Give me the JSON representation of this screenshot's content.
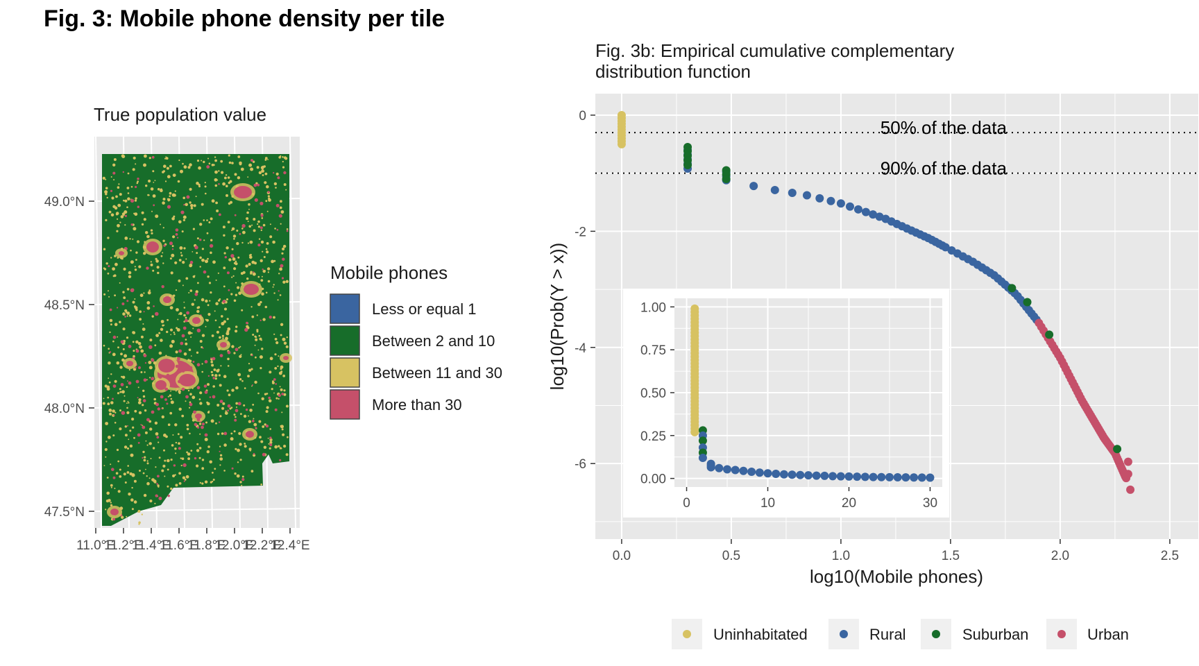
{
  "figure": {
    "title": "Fig. 3: Mobile phone density per tile"
  },
  "colors": {
    "blue": "#3a65a0",
    "green": "#176d2a",
    "yellow": "#d7c262",
    "red": "#c5506a",
    "panel": "#e8e8e8",
    "grid": "#ffffff"
  },
  "chart_data": [
    {
      "type": "map",
      "title": "True population value",
      "y_ticks": [
        "47.5°N",
        "48.0°N",
        "48.5°N",
        "49.0°N"
      ],
      "x_ticks": [
        "11.0°E",
        "11.2°E",
        "11.4°E",
        "11.6°E",
        "11.8°E",
        "12.0°E",
        "12.2°E",
        "12.4°E"
      ],
      "legend": {
        "title": "Mobile phones",
        "entries": [
          {
            "label": "Less or equal 1",
            "color": "#3a65a0"
          },
          {
            "label": "Between 2 and 10",
            "color": "#176d2a"
          },
          {
            "label": "Between 11 and 30",
            "color": "#d7c262"
          },
          {
            "label": "More than 30",
            "color": "#c5506a"
          }
        ]
      }
    },
    {
      "type": "scatter",
      "title": "Fig. 3b: Empirical cumulative complementary distribution function",
      "title_lines": [
        "Fig. 3b: Empirical cumulative complementary",
        "distribution function"
      ],
      "xlabel": "log10(Mobile phones)",
      "ylabel": "log10(Prob(Y > x))",
      "xlim": [
        -0.12,
        2.63
      ],
      "ylim": [
        -7.3,
        0.37
      ],
      "x_ticks": [
        0.0,
        0.5,
        1.0,
        1.5,
        2.0,
        2.5
      ],
      "x_tick_labels": [
        "0.0",
        "0.5",
        "1.0",
        "1.5",
        "2.0",
        "2.5"
      ],
      "y_ticks": [
        0,
        -2,
        -4,
        -6
      ],
      "y_tick_labels": [
        "0",
        "-2",
        "-4",
        "-6"
      ],
      "hlines": [
        {
          "y": -0.301,
          "label": "50% of the data"
        },
        {
          "y": -1.0,
          "label": "90% of the data"
        }
      ],
      "legend": {
        "placement": "bottom",
        "entries": [
          {
            "label": "Uninhabitated",
            "color": "#d7c262"
          },
          {
            "label": "Rural",
            "color": "#3a65a0"
          },
          {
            "label": "Suburban",
            "color": "#176d2a"
          },
          {
            "label": "Urban",
            "color": "#c5506a"
          }
        ]
      },
      "curve_knots": [
        [
          0.0,
          0.0
        ],
        [
          0.301,
          -0.75
        ],
        [
          0.477,
          -1.07
        ],
        [
          0.602,
          -1.22
        ],
        [
          0.699,
          -1.29
        ],
        [
          0.845,
          -1.38
        ],
        [
          1.0,
          -1.52
        ],
        [
          1.2,
          -1.78
        ],
        [
          1.4,
          -2.12
        ],
        [
          1.6,
          -2.52
        ],
        [
          1.7,
          -2.76
        ],
        [
          1.8,
          -3.09
        ],
        [
          1.9,
          -3.56
        ],
        [
          2.0,
          -4.18
        ],
        [
          2.1,
          -4.92
        ],
        [
          2.2,
          -5.56
        ],
        [
          2.25,
          -5.82
        ],
        [
          2.3,
          -6.25
        ]
      ],
      "series": [
        {
          "name": "Uninhabitated",
          "color": "#d7c262",
          "points": [
            [
              0,
              0.0
            ],
            [
              0,
              -0.05
            ],
            [
              0,
              -0.1
            ],
            [
              0,
              -0.15
            ],
            [
              0,
              -0.2
            ],
            [
              0,
              -0.25
            ],
            [
              0,
              -0.3
            ],
            [
              0,
              -0.35
            ],
            [
              0,
              -0.4
            ],
            [
              0,
              -0.45
            ],
            [
              0,
              -0.5
            ]
          ]
        },
        {
          "name": "Suburban",
          "color": "#176d2a",
          "points": [
            [
              0.301,
              -0.55
            ],
            [
              0.301,
              -0.62
            ],
            [
              0.301,
              -0.7
            ],
            [
              0.301,
              -0.78
            ],
            [
              0.301,
              -0.86
            ],
            [
              0.477,
              -0.95
            ],
            [
              0.477,
              -1.02
            ],
            [
              0.477,
              -1.1
            ],
            [
              1.78,
              -2.98
            ],
            [
              1.85,
              -3.22
            ],
            [
              1.95,
              -3.78
            ],
            [
              2.26,
              -5.75
            ]
          ]
        },
        {
          "name": "Urban",
          "color": "#c5506a",
          "points": [
            [
              2.31,
              -5.97
            ],
            [
              2.31,
              -6.18
            ],
            [
              2.32,
              -6.45
            ]
          ]
        }
      ],
      "inset": {
        "xlim": [
          -1.5,
          31.5
        ],
        "ylim": [
          -0.05,
          1.05
        ],
        "x_ticks": [
          0,
          10,
          20,
          30
        ],
        "x_tick_labels": [
          "0",
          "10",
          "20",
          "30"
        ],
        "y_ticks": [
          0.0,
          0.25,
          0.5,
          0.75,
          1.0
        ],
        "y_tick_labels": [
          "0.00",
          "0.25",
          "0.50",
          "0.75",
          "1.00"
        ],
        "yellow_x": 1,
        "yellow_range": [
          0.27,
          1.0
        ],
        "points": [
          [
            2,
            0.28
          ],
          [
            2,
            0.25
          ],
          [
            2,
            0.22
          ],
          [
            2,
            0.18
          ],
          [
            2,
            0.15
          ],
          [
            2,
            0.12
          ],
          [
            3,
            0.085
          ],
          [
            3,
            0.075
          ],
          [
            3,
            0.065
          ],
          [
            4,
            0.06
          ],
          [
            5,
            0.053
          ],
          [
            6,
            0.049
          ],
          [
            7,
            0.044
          ],
          [
            8,
            0.039
          ],
          [
            9,
            0.034
          ],
          [
            10,
            0.03
          ],
          [
            11,
            0.027
          ],
          [
            12,
            0.024
          ],
          [
            13,
            0.022
          ],
          [
            14,
            0.02
          ],
          [
            15,
            0.018
          ],
          [
            16,
            0.016
          ],
          [
            17,
            0.015
          ],
          [
            18,
            0.013
          ],
          [
            19,
            0.012
          ],
          [
            20,
            0.011
          ],
          [
            21,
            0.01
          ],
          [
            22,
            0.009
          ],
          [
            23,
            0.008
          ],
          [
            24,
            0.0075
          ],
          [
            25,
            0.007
          ],
          [
            26,
            0.0065
          ],
          [
            27,
            0.006
          ],
          [
            28,
            0.0055
          ],
          [
            29,
            0.005
          ],
          [
            30,
            0.0045
          ]
        ]
      }
    }
  ]
}
